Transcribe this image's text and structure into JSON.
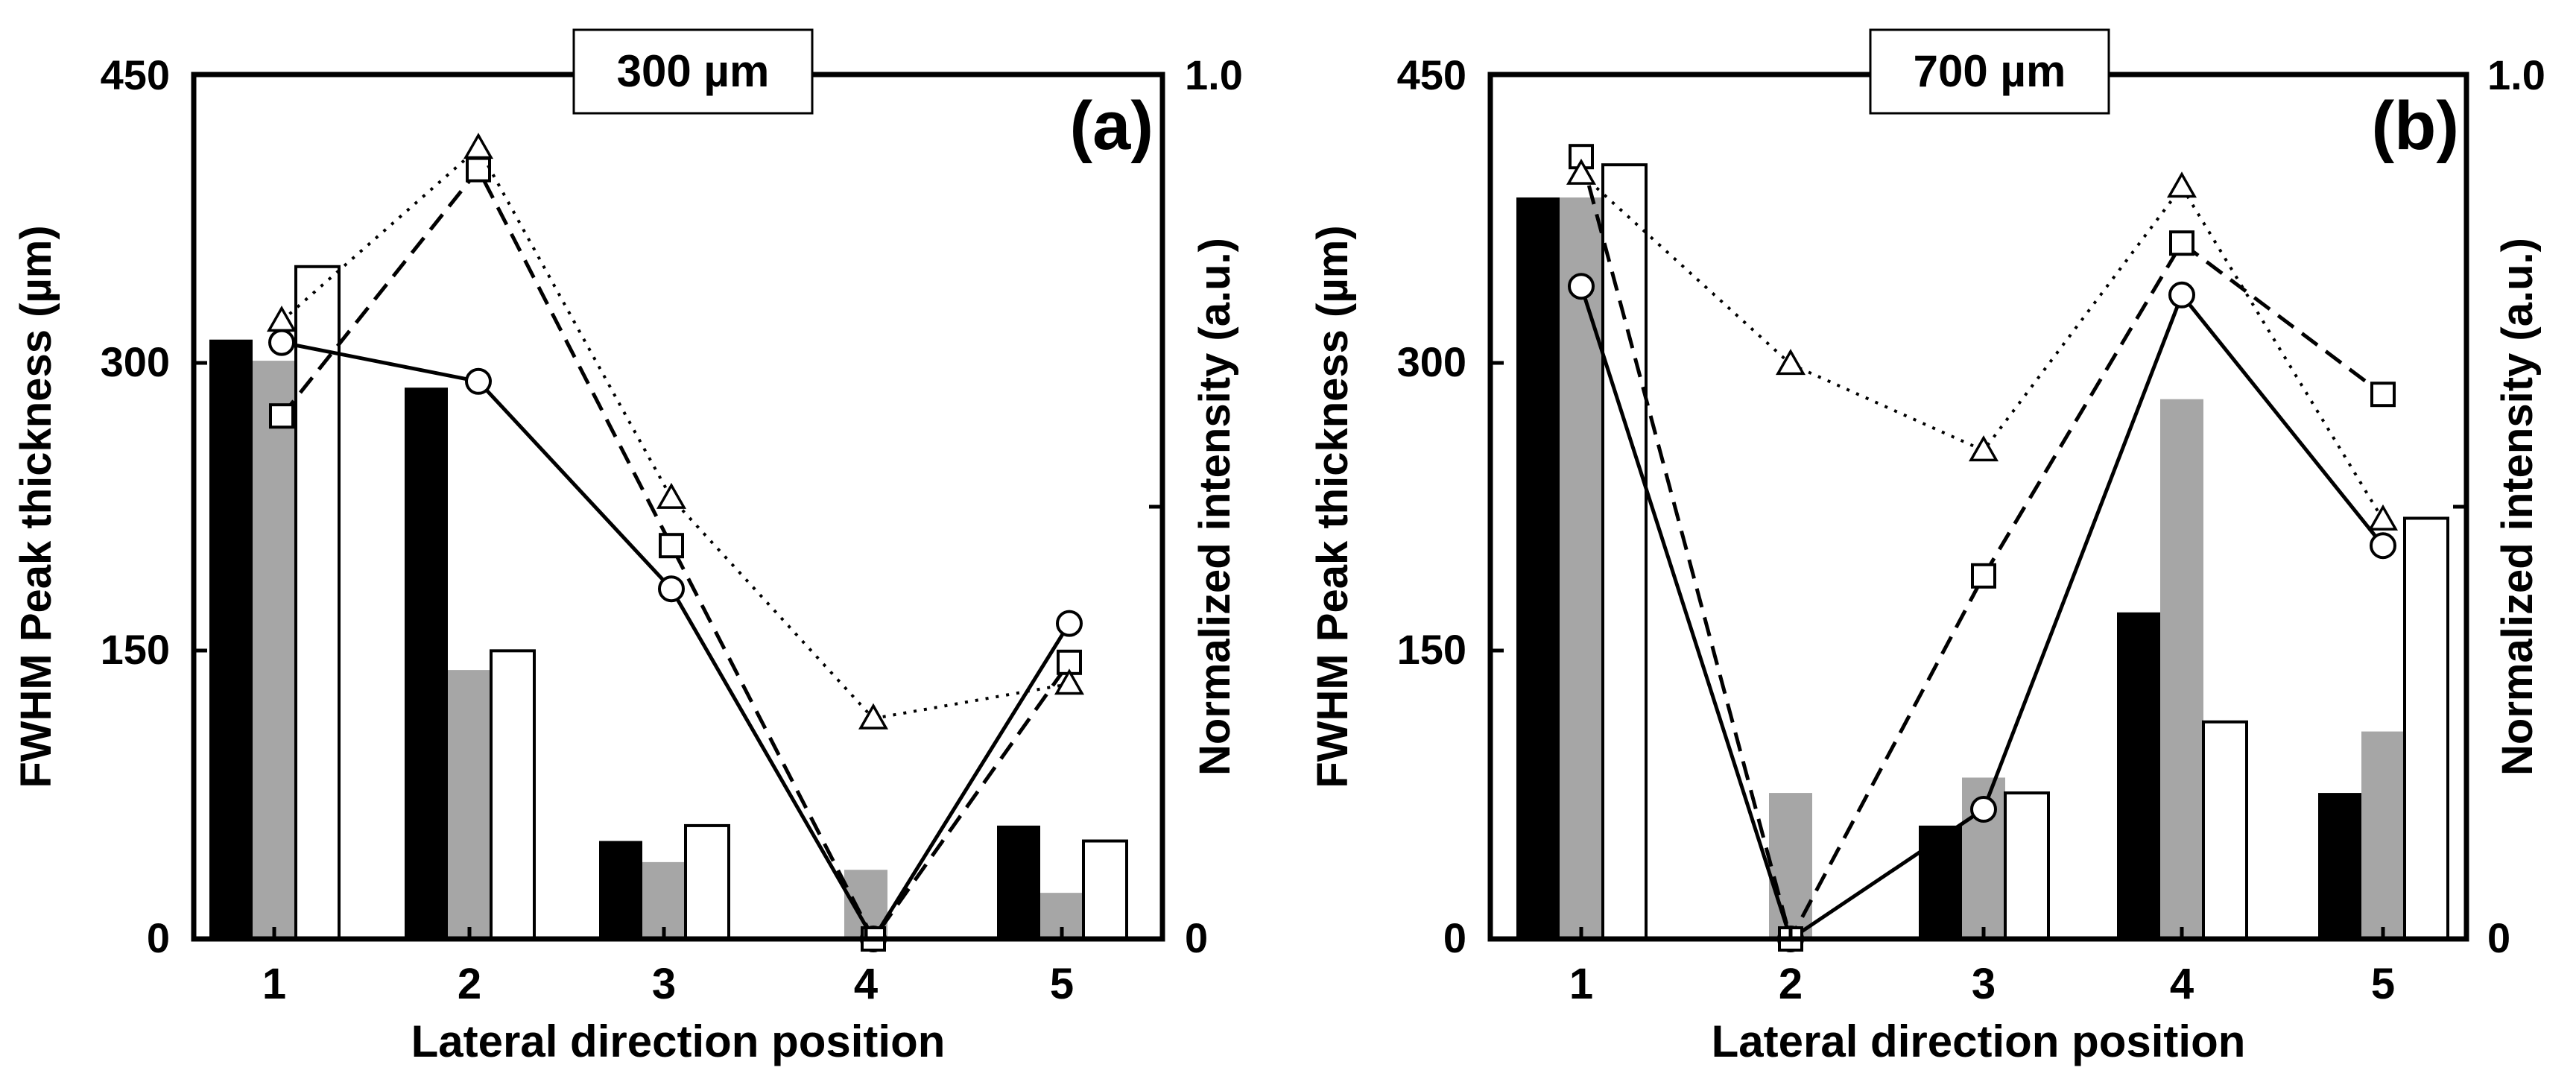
{
  "chart_data": [
    {
      "type": "bar+line",
      "title": "300 µm",
      "panel_label": "(a)",
      "xlabel": "Lateral direction position",
      "ylabel_left": "FWHM Peak thickness (µm)",
      "ylabel_right": "Normalized intensity (a.u.)",
      "categories": [
        "1",
        "2",
        "3",
        "4",
        "5"
      ],
      "ylim_left": [
        0,
        450
      ],
      "yticks_left": [
        "0",
        "150",
        "300",
        "450"
      ],
      "ylim_right": [
        0,
        1.0
      ],
      "yticks_right": [
        "0",
        "1.0"
      ],
      "bar_series": [
        {
          "name": "bar-black",
          "color": "#000000",
          "values": [
            312,
            287,
            51,
            0,
            59
          ]
        },
        {
          "name": "bar-gray",
          "color": "#a6a6a6",
          "values": [
            301,
            140,
            40,
            36,
            24
          ]
        },
        {
          "name": "bar-white",
          "color": "#ffffff",
          "values": [
            350,
            150,
            59,
            0,
            51
          ]
        }
      ],
      "line_series": [
        {
          "name": "circle-solid",
          "marker": "circle",
          "dash": "solid",
          "values": [
            0.69,
            0.645,
            0.405,
            0.0,
            0.365
          ]
        },
        {
          "name": "square-dashed",
          "marker": "square",
          "dash": "dashed",
          "values": [
            0.605,
            0.89,
            0.455,
            0.0,
            0.32
          ]
        },
        {
          "name": "triangle-dotted",
          "marker": "triangle",
          "dash": "dotted",
          "values": [
            0.715,
            0.915,
            0.51,
            0.255,
            0.295
          ]
        }
      ]
    },
    {
      "type": "bar+line",
      "title": "700 µm",
      "panel_label": "(b)",
      "xlabel": "Lateral direction position",
      "ylabel_left": "FWHM Peak thickness (µm)",
      "ylabel_right": "Normalized intensity (a.u.)",
      "categories": [
        "1",
        "2",
        "3",
        "4",
        "5"
      ],
      "ylim_left": [
        0,
        450
      ],
      "yticks_left": [
        "0",
        "150",
        "300",
        "450"
      ],
      "ylim_right": [
        0,
        1.0
      ],
      "yticks_right": [
        "0",
        "1.0"
      ],
      "bar_series": [
        {
          "name": "bar-black",
          "color": "#000000",
          "values": [
            386,
            0,
            59,
            170,
            76
          ]
        },
        {
          "name": "bar-gray",
          "color": "#a6a6a6",
          "values": [
            386,
            76,
            84,
            281,
            108
          ]
        },
        {
          "name": "bar-white",
          "color": "#ffffff",
          "values": [
            403,
            0,
            76,
            113,
            219
          ]
        }
      ],
      "line_series": [
        {
          "name": "circle-solid",
          "marker": "circle",
          "dash": "solid",
          "values": [
            0.755,
            0.0,
            0.15,
            0.745,
            0.455
          ]
        },
        {
          "name": "square-dashed",
          "marker": "square",
          "dash": "dashed",
          "values": [
            0.905,
            0.0,
            0.42,
            0.805,
            0.63
          ]
        },
        {
          "name": "triangle-dotted",
          "marker": "triangle",
          "dash": "dotted",
          "values": [
            0.885,
            0.665,
            0.565,
            0.87,
            0.485
          ]
        }
      ]
    }
  ]
}
